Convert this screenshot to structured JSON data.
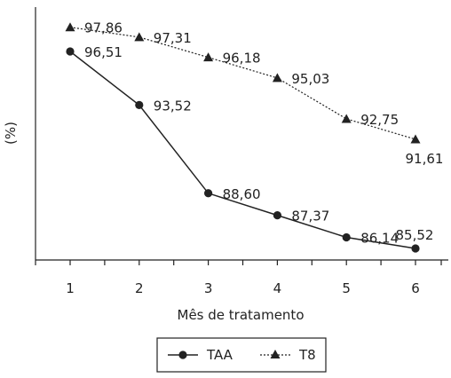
{
  "chart_data": {
    "type": "line",
    "xlabel": "Mês de tratamento",
    "ylabel": "(%)",
    "x": [
      1,
      2,
      3,
      4,
      5,
      6
    ],
    "ylim": [
      84,
      99
    ],
    "grid": false,
    "legend_placement": "bottom-center",
    "series": [
      {
        "name": "TAA",
        "values": [
          96.51,
          93.52,
          88.6,
          87.37,
          86.14,
          85.52
        ],
        "labels": [
          "96,51",
          "93,52",
          "88,60",
          "87,37",
          "86,14",
          "85,52"
        ],
        "marker": "circle",
        "line_style": "solid",
        "color": "#222222"
      },
      {
        "name": "T8",
        "values": [
          97.86,
          97.31,
          96.18,
          95.03,
          92.75,
          91.61
        ],
        "labels": [
          "97,86",
          "97,31",
          "96,18",
          "95,03",
          "92,75",
          "91,61"
        ],
        "marker": "triangle",
        "line_style": "dotted",
        "color": "#222222"
      }
    ]
  }
}
